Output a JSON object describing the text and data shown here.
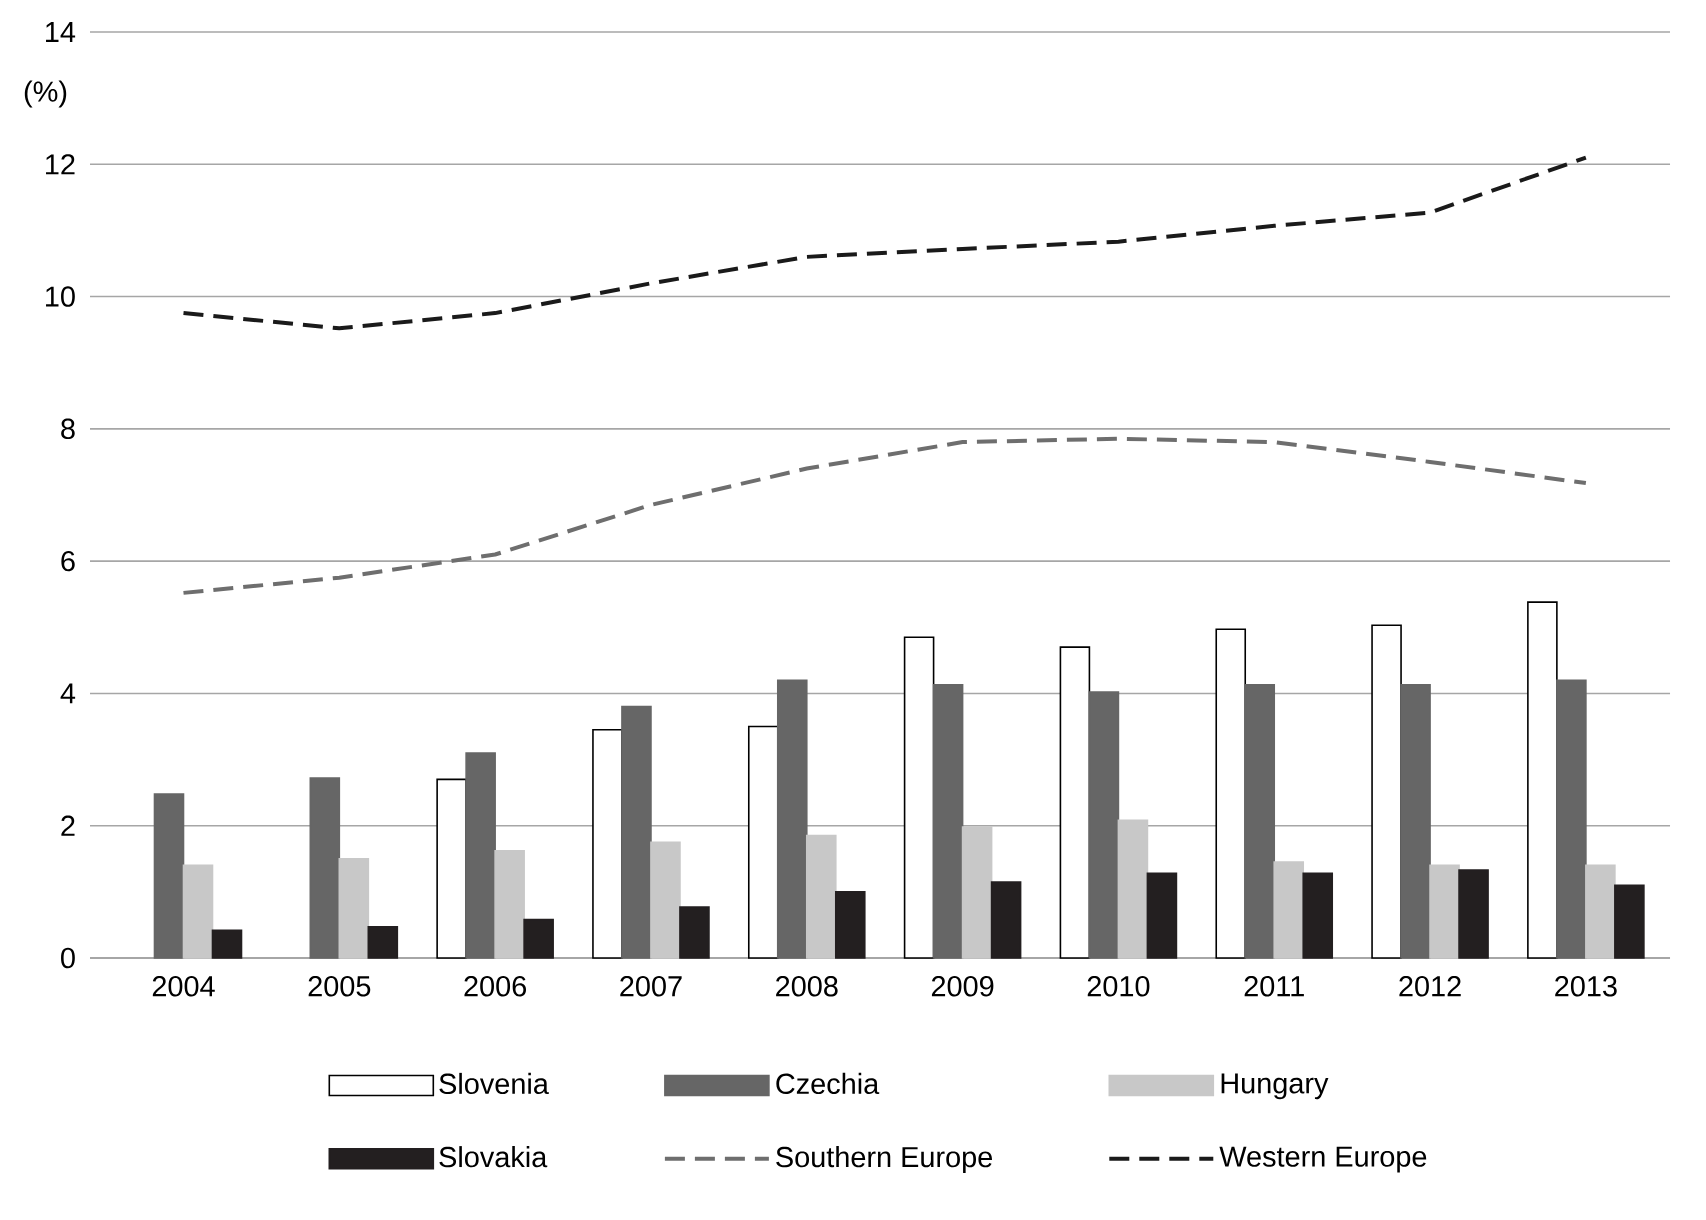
{
  "chart_data": {
    "type": "bar",
    "ylabel": "(%)",
    "categories": [
      "2004",
      "2005",
      "2006",
      "2007",
      "2008",
      "2009",
      "2010",
      "2011",
      "2012",
      "2013"
    ],
    "ylim": [
      0,
      14
    ],
    "yticks": [
      0,
      2,
      4,
      6,
      8,
      10,
      12,
      14
    ],
    "grid": "y",
    "legend": "bottom",
    "series": [
      {
        "name": "Slovenia",
        "color": "#ffffff",
        "values": [
          null,
          null,
          2.7,
          3.45,
          3.5,
          4.85,
          4.7,
          4.97,
          5.03,
          5.38
        ]
      },
      {
        "name": "Czechia",
        "color": "#666666",
        "values": [
          2.48,
          2.72,
          3.1,
          3.8,
          4.2,
          4.13,
          4.02,
          4.13,
          4.13,
          4.2
        ]
      },
      {
        "name": "Hungary",
        "color": "#c8c8c8",
        "values": [
          1.4,
          1.5,
          1.62,
          1.75,
          1.85,
          1.98,
          2.08,
          1.45,
          1.4,
          1.4
        ]
      },
      {
        "name": "Slovakia",
        "color": "#231f20",
        "values": [
          0.42,
          0.47,
          0.58,
          0.77,
          1.0,
          1.15,
          1.28,
          1.28,
          1.33,
          1.1
        ]
      },
      {
        "name": "Southern Europe",
        "type": "line",
        "line_style": "dashed",
        "color": "#6e6e6e",
        "values": [
          5.52,
          5.75,
          6.1,
          6.85,
          7.4,
          7.8,
          7.85,
          7.8,
          7.5,
          7.18
        ]
      },
      {
        "name": "Western Europe",
        "type": "line",
        "line_style": "dashed",
        "color": "#1a1a1a",
        "values": [
          9.75,
          9.52,
          9.75,
          10.2,
          10.6,
          10.72,
          10.83,
          11.07,
          11.27,
          12.1
        ]
      }
    ]
  }
}
